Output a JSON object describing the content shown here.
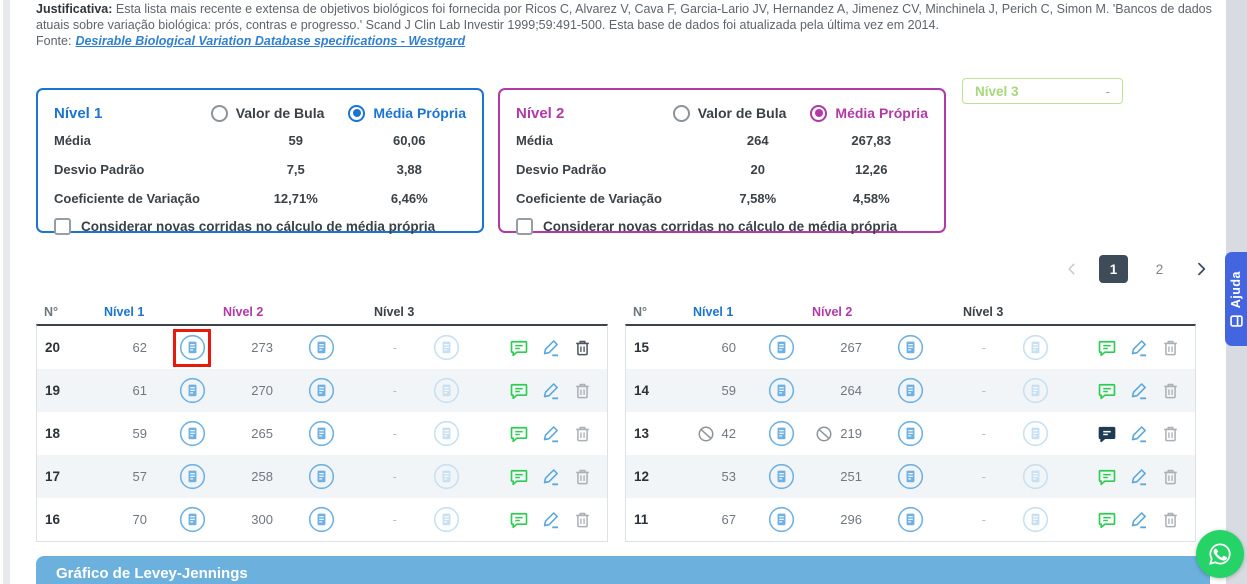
{
  "page": {
    "justificativa_label": "Justificativa:",
    "justificativa_text": " Esta lista mais recente e extensa de objetivos biológicos foi fornecida por Ricos C, Alvarez V, Cava F, Garcia-Lario JV, Hernandez A, Jimenez CV, Minchinela J, Perich C, Simon M. 'Bancos de dados atuais sobre variação biológica: prós, contras e progresso.' Scand J Clin Lab Investir 1999;59:491-500. Esta base de dados foi atualizada pela última vez em 2014.",
    "fonte_label": "Fonte:",
    "fonte_link": "Desirable Biological Variation Database specifications - Westgard"
  },
  "panels": [
    {
      "title": "Nível 1",
      "radio_bula": "Valor de Bula",
      "radio_propria": "Média Própria",
      "selected": "Média Própria",
      "rows": [
        {
          "label": "Média",
          "bula": "59",
          "propria": "60,06"
        },
        {
          "label": "Desvio Padrão",
          "bula": "7,5",
          "propria": "3,88"
        },
        {
          "label": "Coeficiente de Variação",
          "bula": "12,71%",
          "propria": "6,46%"
        }
      ],
      "checkbox_label": "Considerar novas corridas no cálculo de média própria",
      "checkbox_checked": false
    },
    {
      "title": "Nível 2",
      "radio_bula": "Valor de Bula",
      "radio_propria": "Média Própria",
      "selected": "Média Própria",
      "rows": [
        {
          "label": "Média",
          "bula": "264",
          "propria": "267,83"
        },
        {
          "label": "Desvio Padrão",
          "bula": "20",
          "propria": "12,26"
        },
        {
          "label": "Coeficiente de Variação",
          "bula": "7,58%",
          "propria": "4,58%"
        }
      ],
      "checkbox_label": "Considerar novas corridas no cálculo de média própria",
      "checkbox_checked": false
    }
  ],
  "panel3": {
    "title": "Nível 3",
    "value": "-"
  },
  "pagination": {
    "pages": [
      "1",
      "2"
    ],
    "active": "1"
  },
  "runs_table": {
    "headers": {
      "num": "N°",
      "n1": "Nível 1",
      "n2": "Nível 2",
      "n3": "Nível 3"
    },
    "left_rows": [
      {
        "n": "20",
        "v1": "62",
        "v2": "273",
        "v3": "-",
        "blocked": false,
        "comment_dark": false,
        "trash_dark": true,
        "highlight_doc1": true
      },
      {
        "n": "19",
        "v1": "61",
        "v2": "270",
        "v3": "-",
        "blocked": false,
        "comment_dark": false,
        "trash_dark": false,
        "highlight_doc1": false
      },
      {
        "n": "18",
        "v1": "59",
        "v2": "265",
        "v3": "-",
        "blocked": false,
        "comment_dark": false,
        "trash_dark": false,
        "highlight_doc1": false
      },
      {
        "n": "17",
        "v1": "57",
        "v2": "258",
        "v3": "-",
        "blocked": false,
        "comment_dark": false,
        "trash_dark": false,
        "highlight_doc1": false
      },
      {
        "n": "16",
        "v1": "70",
        "v2": "300",
        "v3": "-",
        "blocked": false,
        "comment_dark": false,
        "trash_dark": false,
        "highlight_doc1": false
      }
    ],
    "right_rows": [
      {
        "n": "15",
        "v1": "60",
        "v2": "267",
        "v3": "-",
        "blocked": false,
        "comment_dark": false,
        "trash_dark": false,
        "highlight_doc1": false
      },
      {
        "n": "14",
        "v1": "59",
        "v2": "264",
        "v3": "-",
        "blocked": false,
        "comment_dark": false,
        "trash_dark": false,
        "highlight_doc1": false
      },
      {
        "n": "13",
        "v1": "42",
        "v2": "219",
        "v3": "-",
        "blocked": true,
        "comment_dark": true,
        "trash_dark": false,
        "highlight_doc1": false
      },
      {
        "n": "12",
        "v1": "53",
        "v2": "251",
        "v3": "-",
        "blocked": false,
        "comment_dark": false,
        "trash_dark": false,
        "highlight_doc1": false
      },
      {
        "n": "11",
        "v1": "67",
        "v2": "296",
        "v3": "-",
        "blocked": false,
        "comment_dark": false,
        "trash_dark": false,
        "highlight_doc1": false
      }
    ]
  },
  "chart_section": {
    "title": "Gráfico de Levey-Jennings"
  },
  "help_tab": {
    "label": "Ajuda"
  },
  "colors": {
    "level1_blue": "#1b74d1",
    "level2_magenta": "#b13aa6",
    "level3_green": "#a6d877",
    "comment_green": "#2ecc52",
    "comment_dark": "#1d3c52",
    "edit_blue": "#5aa7da",
    "highlight_red": "#e8190c",
    "whatsapp_green": "#25d366",
    "help_blue": "#4365e0",
    "chart_bar_blue": "#6cb1de"
  }
}
